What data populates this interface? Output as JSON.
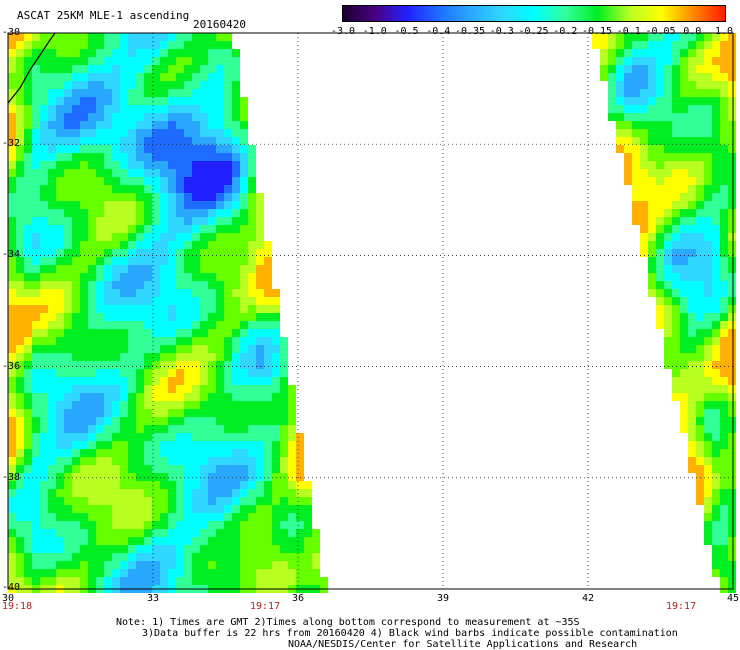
{
  "header": {
    "title": "ASCAT 25KM MLE-1 ascending",
    "date": "20160420"
  },
  "colorbar": {
    "labels": [
      "-3.0",
      "-1.0",
      "-0.5",
      "-0.4",
      "-0.35",
      "-0.3",
      "-0.25",
      "-0.2",
      "-0.15",
      "-0.1",
      "-0.05",
      "0.0",
      "1.0"
    ],
    "colors": [
      "#1a0030",
      "#4b0082",
      "#2020ff",
      "#1e6cff",
      "#2aa8ff",
      "#2fd6ff",
      "#00ffff",
      "#33ff99",
      "#00ee22",
      "#b8ff22",
      "#ffff00",
      "#ff8800",
      "#ff1a00"
    ]
  },
  "map": {
    "lat_labels": [
      "-30",
      "-32",
      "-34",
      "-36",
      "-38",
      "-40"
    ],
    "lon_labels": [
      "30",
      "33",
      "36",
      "39",
      "42",
      "45"
    ],
    "lon_range": [
      30,
      45
    ],
    "lat_range": [
      -30,
      -40
    ],
    "time_labels": {
      "left": "19:18",
      "mid": "19:17",
      "right": "19:17"
    },
    "swaths": [
      {
        "name": "west-swath",
        "left_edge_lon": [
          30,
          30
        ],
        "right_edge_lon": [
          34.6,
          36.5
        ]
      },
      {
        "name": "east-swath",
        "left_edge_lon": [
          42.2,
          44.8
        ],
        "right_edge_lon": [
          45,
          45
        ]
      }
    ]
  },
  "footer": {
    "line1": "Note: 1) Times are GMT 2)Times along bottom correspond to measurement at ~35S",
    "line2": "3)Data buffer is 22 hrs from 20160420 4) Black wind barbs indicate possible contamination",
    "line3": "NOAA/NESDIS/Center for Satellite Applications and Research"
  }
}
